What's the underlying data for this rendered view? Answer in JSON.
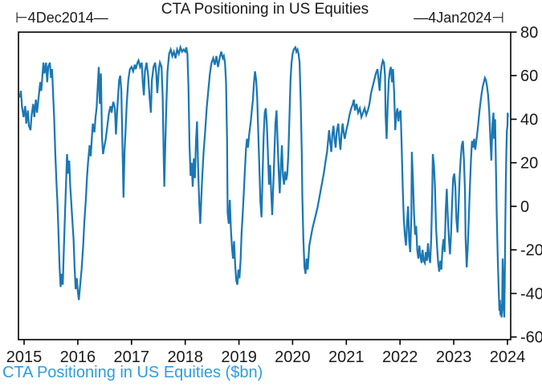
{
  "title": "CTA Positioning in US Equities",
  "range_labels": {
    "start": "⊢4Dec2014—",
    "end": "—4Jan2024⊣"
  },
  "footer": "CTA Positioning in US Equities ($bn)",
  "colors": {
    "line": "#1b77b4",
    "footer_text": "#2d9de0",
    "axis": "#000000",
    "text": "#1a1a1a"
  },
  "chart_data": {
    "type": "line",
    "title": "CTA Positioning in US Equities",
    "series_name": "CTA Positioning in US Equities ($bn)",
    "start_label": "4Dec2014",
    "end_label": "4Jan2024",
    "x_unit": "decimal_year",
    "y_axis_side": "right",
    "grid": false,
    "xlim": [
      2014.895,
      2024.06
    ],
    "ylim": [
      -61.2,
      80
    ],
    "x_ticks": [
      2015,
      2016,
      2017,
      2018,
      2019,
      2020,
      2021,
      2022,
      2023,
      2024
    ],
    "y_ticks": [
      80,
      60,
      40,
      20,
      0,
      -20,
      -40,
      -60
    ],
    "points": [
      [
        2014.92,
        50
      ],
      [
        2014.94,
        53
      ],
      [
        2014.96,
        46
      ],
      [
        2014.99,
        41
      ],
      [
        2015.02,
        46
      ],
      [
        2015.04,
        38
      ],
      [
        2015.07,
        44
      ],
      [
        2015.09,
        37
      ],
      [
        2015.12,
        35
      ],
      [
        2015.14,
        42
      ],
      [
        2015.17,
        47
      ],
      [
        2015.19,
        41
      ],
      [
        2015.22,
        49
      ],
      [
        2015.24,
        43
      ],
      [
        2015.27,
        50
      ],
      [
        2015.3,
        57
      ],
      [
        2015.32,
        53
      ],
      [
        2015.34,
        60
      ],
      [
        2015.36,
        66
      ],
      [
        2015.38,
        61
      ],
      [
        2015.41,
        66
      ],
      [
        2015.43,
        57
      ],
      [
        2015.45,
        64
      ],
      [
        2015.48,
        66
      ],
      [
        2015.5,
        59
      ],
      [
        2015.52,
        63
      ],
      [
        2015.54,
        52
      ],
      [
        2015.56,
        40
      ],
      [
        2015.58,
        25
      ],
      [
        2015.6,
        12
      ],
      [
        2015.62,
        2
      ],
      [
        2015.64,
        -12
      ],
      [
        2015.66,
        -28
      ],
      [
        2015.68,
        -37
      ],
      [
        2015.7,
        -31
      ],
      [
        2015.72,
        -36
      ],
      [
        2015.74,
        -20
      ],
      [
        2015.76,
        -4
      ],
      [
        2015.78,
        10
      ],
      [
        2015.8,
        24
      ],
      [
        2015.82,
        15
      ],
      [
        2015.84,
        21
      ],
      [
        2015.86,
        9
      ],
      [
        2015.88,
        1
      ],
      [
        2015.9,
        -7
      ],
      [
        2015.92,
        -15
      ],
      [
        2015.94,
        -28
      ],
      [
        2015.96,
        -38
      ],
      [
        2015.98,
        -33
      ],
      [
        2016.0,
        -39
      ],
      [
        2016.02,
        -43
      ],
      [
        2016.04,
        -37
      ],
      [
        2016.07,
        -29
      ],
      [
        2016.1,
        -18
      ],
      [
        2016.12,
        -8
      ],
      [
        2016.15,
        3
      ],
      [
        2016.17,
        13
      ],
      [
        2016.19,
        20
      ],
      [
        2016.22,
        28
      ],
      [
        2016.24,
        23
      ],
      [
        2016.26,
        31
      ],
      [
        2016.28,
        38
      ],
      [
        2016.31,
        34
      ],
      [
        2016.33,
        41
      ],
      [
        2016.35,
        45
      ],
      [
        2016.37,
        55
      ],
      [
        2016.39,
        64
      ],
      [
        2016.41,
        47
      ],
      [
        2016.43,
        61
      ],
      [
        2016.45,
        32
      ],
      [
        2016.47,
        24
      ],
      [
        2016.49,
        27
      ],
      [
        2016.52,
        31
      ],
      [
        2016.55,
        37
      ],
      [
        2016.58,
        43
      ],
      [
        2016.61,
        46
      ],
      [
        2016.63,
        43
      ],
      [
        2016.66,
        48
      ],
      [
        2016.69,
        45
      ],
      [
        2016.71,
        33
      ],
      [
        2016.74,
        47
      ],
      [
        2016.77,
        58
      ],
      [
        2016.79,
        60
      ],
      [
        2016.81,
        53
      ],
      [
        2016.83,
        30
      ],
      [
        2016.85,
        4
      ],
      [
        2016.87,
        25
      ],
      [
        2016.89,
        35
      ],
      [
        2016.91,
        47
      ],
      [
        2016.94,
        58
      ],
      [
        2016.97,
        63
      ],
      [
        2017.0,
        64
      ],
      [
        2017.03,
        62
      ],
      [
        2017.06,
        65
      ],
      [
        2017.08,
        63
      ],
      [
        2017.11,
        66
      ],
      [
        2017.13,
        67
      ],
      [
        2017.16,
        64
      ],
      [
        2017.19,
        66
      ],
      [
        2017.21,
        57
      ],
      [
        2017.23,
        51
      ],
      [
        2017.25,
        62
      ],
      [
        2017.28,
        66
      ],
      [
        2017.31,
        60
      ],
      [
        2017.34,
        49
      ],
      [
        2017.36,
        43
      ],
      [
        2017.38,
        58
      ],
      [
        2017.41,
        64
      ],
      [
        2017.44,
        66
      ],
      [
        2017.46,
        61
      ],
      [
        2017.48,
        52
      ],
      [
        2017.51,
        63
      ],
      [
        2017.53,
        66
      ],
      [
        2017.56,
        64
      ],
      [
        2017.58,
        50
      ],
      [
        2017.6,
        22
      ],
      [
        2017.61,
        9
      ],
      [
        2017.63,
        29
      ],
      [
        2017.65,
        48
      ],
      [
        2017.67,
        62
      ],
      [
        2017.7,
        70
      ],
      [
        2017.73,
        72
      ],
      [
        2017.76,
        69
      ],
      [
        2017.79,
        71
      ],
      [
        2017.82,
        68
      ],
      [
        2017.85,
        72
      ],
      [
        2017.88,
        70
      ],
      [
        2017.91,
        73
      ],
      [
        2017.94,
        71
      ],
      [
        2017.97,
        72
      ],
      [
        2018.0,
        71
      ],
      [
        2018.02,
        73
      ],
      [
        2018.04,
        70
      ],
      [
        2018.06,
        55
      ],
      [
        2018.08,
        28
      ],
      [
        2018.1,
        14
      ],
      [
        2018.12,
        20
      ],
      [
        2018.14,
        9
      ],
      [
        2018.16,
        22
      ],
      [
        2018.18,
        13
      ],
      [
        2018.2,
        30
      ],
      [
        2018.22,
        39
      ],
      [
        2018.24,
        18
      ],
      [
        2018.26,
        2
      ],
      [
        2018.28,
        -8
      ],
      [
        2018.31,
        10
      ],
      [
        2018.34,
        24
      ],
      [
        2018.37,
        34
      ],
      [
        2018.4,
        45
      ],
      [
        2018.43,
        53
      ],
      [
        2018.46,
        61
      ],
      [
        2018.49,
        66
      ],
      [
        2018.52,
        68
      ],
      [
        2018.55,
        65
      ],
      [
        2018.58,
        69
      ],
      [
        2018.61,
        64
      ],
      [
        2018.64,
        68
      ],
      [
        2018.67,
        71
      ],
      [
        2018.7,
        68
      ],
      [
        2018.72,
        69
      ],
      [
        2018.74,
        66
      ],
      [
        2018.76,
        57
      ],
      [
        2018.78,
        30
      ],
      [
        2018.79,
        -3
      ],
      [
        2018.81,
        -8
      ],
      [
        2018.83,
        3
      ],
      [
        2018.85,
        -10
      ],
      [
        2018.87,
        -19
      ],
      [
        2018.89,
        -24
      ],
      [
        2018.91,
        -16
      ],
      [
        2018.93,
        -27
      ],
      [
        2018.95,
        -34
      ],
      [
        2018.97,
        -36
      ],
      [
        2018.99,
        -29
      ],
      [
        2019.01,
        -33
      ],
      [
        2019.03,
        -25
      ],
      [
        2019.05,
        -12
      ],
      [
        2019.07,
        -4
      ],
      [
        2019.09,
        6
      ],
      [
        2019.11,
        16
      ],
      [
        2019.13,
        26
      ],
      [
        2019.15,
        31
      ],
      [
        2019.17,
        27
      ],
      [
        2019.19,
        33
      ],
      [
        2019.22,
        39
      ],
      [
        2019.24,
        44
      ],
      [
        2019.26,
        49
      ],
      [
        2019.28,
        57
      ],
      [
        2019.3,
        62
      ],
      [
        2019.32,
        58
      ],
      [
        2019.34,
        50
      ],
      [
        2019.36,
        34
      ],
      [
        2019.38,
        18
      ],
      [
        2019.4,
        2
      ],
      [
        2019.42,
        -5
      ],
      [
        2019.44,
        14
      ],
      [
        2019.46,
        32
      ],
      [
        2019.48,
        43
      ],
      [
        2019.5,
        45
      ],
      [
        2019.52,
        38
      ],
      [
        2019.54,
        24
      ],
      [
        2019.56,
        10
      ],
      [
        2019.58,
        19
      ],
      [
        2019.6,
        7
      ],
      [
        2019.62,
        -4
      ],
      [
        2019.64,
        10
      ],
      [
        2019.66,
        24
      ],
      [
        2019.68,
        38
      ],
      [
        2019.7,
        44
      ],
      [
        2019.72,
        30
      ],
      [
        2019.74,
        16
      ],
      [
        2019.76,
        6
      ],
      [
        2019.78,
        18
      ],
      [
        2019.8,
        28
      ],
      [
        2019.82,
        14
      ],
      [
        2019.84,
        10
      ],
      [
        2019.86,
        16
      ],
      [
        2019.88,
        12
      ],
      [
        2019.9,
        15
      ],
      [
        2019.92,
        24
      ],
      [
        2019.94,
        40
      ],
      [
        2019.96,
        58
      ],
      [
        2019.98,
        66
      ],
      [
        2020.0,
        70
      ],
      [
        2020.02,
        72
      ],
      [
        2020.05,
        73
      ],
      [
        2020.07,
        71
      ],
      [
        2020.09,
        72
      ],
      [
        2020.11,
        70
      ],
      [
        2020.13,
        66
      ],
      [
        2020.15,
        48
      ],
      [
        2020.17,
        25
      ],
      [
        2020.18,
        5
      ],
      [
        2020.2,
        -15
      ],
      [
        2020.22,
        -28
      ],
      [
        2020.24,
        -31
      ],
      [
        2020.26,
        -24
      ],
      [
        2020.28,
        -29
      ],
      [
        2020.31,
        -18
      ],
      [
        2020.34,
        -14
      ],
      [
        2020.37,
        -10
      ],
      [
        2020.4,
        -7
      ],
      [
        2020.43,
        -4
      ],
      [
        2020.46,
        -1
      ],
      [
        2020.49,
        3
      ],
      [
        2020.52,
        7
      ],
      [
        2020.55,
        11
      ],
      [
        2020.58,
        15
      ],
      [
        2020.61,
        20
      ],
      [
        2020.64,
        25
      ],
      [
        2020.66,
        30
      ],
      [
        2020.68,
        35
      ],
      [
        2020.7,
        29
      ],
      [
        2020.72,
        25
      ],
      [
        2020.74,
        33
      ],
      [
        2020.76,
        37
      ],
      [
        2020.78,
        31
      ],
      [
        2020.8,
        27
      ],
      [
        2020.82,
        34
      ],
      [
        2020.85,
        38
      ],
      [
        2020.87,
        31
      ],
      [
        2020.89,
        26
      ],
      [
        2020.91,
        33
      ],
      [
        2020.93,
        38
      ],
      [
        2020.95,
        34
      ],
      [
        2020.97,
        31
      ],
      [
        2021.0,
        35
      ],
      [
        2021.03,
        38
      ],
      [
        2021.06,
        42
      ],
      [
        2021.09,
        45
      ],
      [
        2021.12,
        47
      ],
      [
        2021.14,
        49
      ],
      [
        2021.16,
        44
      ],
      [
        2021.19,
        47
      ],
      [
        2021.22,
        43
      ],
      [
        2021.25,
        45
      ],
      [
        2021.28,
        41
      ],
      [
        2021.31,
        43
      ],
      [
        2021.34,
        45
      ],
      [
        2021.37,
        42
      ],
      [
        2021.4,
        44
      ],
      [
        2021.43,
        47
      ],
      [
        2021.46,
        52
      ],
      [
        2021.49,
        55
      ],
      [
        2021.52,
        58
      ],
      [
        2021.55,
        61
      ],
      [
        2021.58,
        63
      ],
      [
        2021.6,
        58
      ],
      [
        2021.62,
        53
      ],
      [
        2021.64,
        61
      ],
      [
        2021.66,
        65
      ],
      [
        2021.68,
        67
      ],
      [
        2021.7,
        66
      ],
      [
        2021.72,
        60
      ],
      [
        2021.73,
        42
      ],
      [
        2021.75,
        31
      ],
      [
        2021.77,
        46
      ],
      [
        2021.79,
        58
      ],
      [
        2021.81,
        62
      ],
      [
        2021.83,
        64
      ],
      [
        2021.85,
        57
      ],
      [
        2021.87,
        63
      ],
      [
        2021.89,
        52
      ],
      [
        2021.91,
        35
      ],
      [
        2021.93,
        42
      ],
      [
        2021.95,
        45
      ],
      [
        2021.97,
        39
      ],
      [
        2021.99,
        43
      ],
      [
        2022.01,
        44
      ],
      [
        2022.03,
        28
      ],
      [
        2022.05,
        8
      ],
      [
        2022.07,
        -6
      ],
      [
        2022.09,
        -13
      ],
      [
        2022.11,
        -18
      ],
      [
        2022.13,
        -8
      ],
      [
        2022.15,
        0
      ],
      [
        2022.17,
        -16
      ],
      [
        2022.19,
        -21
      ],
      [
        2022.21,
        -4
      ],
      [
        2022.22,
        25
      ],
      [
        2022.24,
        12
      ],
      [
        2022.26,
        -3
      ],
      [
        2022.28,
        -13
      ],
      [
        2022.3,
        -9
      ],
      [
        2022.32,
        -20
      ],
      [
        2022.34,
        -24
      ],
      [
        2022.36,
        -18
      ],
      [
        2022.38,
        -23
      ],
      [
        2022.4,
        -26
      ],
      [
        2022.42,
        -20
      ],
      [
        2022.44,
        -25
      ],
      [
        2022.46,
        -26
      ],
      [
        2022.48,
        -21
      ],
      [
        2022.5,
        -25
      ],
      [
        2022.52,
        -17
      ],
      [
        2022.54,
        -23
      ],
      [
        2022.56,
        -26
      ],
      [
        2022.58,
        -15
      ],
      [
        2022.6,
        6
      ],
      [
        2022.61,
        24
      ],
      [
        2022.63,
        19
      ],
      [
        2022.65,
        9
      ],
      [
        2022.67,
        -9
      ],
      [
        2022.69,
        -19
      ],
      [
        2022.71,
        -26
      ],
      [
        2022.73,
        -30
      ],
      [
        2022.75,
        -25
      ],
      [
        2022.77,
        -29
      ],
      [
        2022.79,
        -19
      ],
      [
        2022.81,
        -15
      ],
      [
        2022.83,
        -21
      ],
      [
        2022.85,
        -2
      ],
      [
        2022.87,
        8
      ],
      [
        2022.89,
        -5
      ],
      [
        2022.91,
        -15
      ],
      [
        2022.93,
        -22
      ],
      [
        2022.95,
        -12
      ],
      [
        2022.97,
        2
      ],
      [
        2022.99,
        13
      ],
      [
        2023.01,
        15
      ],
      [
        2023.03,
        9
      ],
      [
        2023.05,
        -6
      ],
      [
        2023.07,
        -12
      ],
      [
        2023.09,
        0
      ],
      [
        2023.11,
        14
      ],
      [
        2023.13,
        22
      ],
      [
        2023.15,
        28
      ],
      [
        2023.17,
        30
      ],
      [
        2023.19,
        21
      ],
      [
        2023.21,
        7
      ],
      [
        2023.22,
        -14
      ],
      [
        2023.24,
        -28
      ],
      [
        2023.26,
        -19
      ],
      [
        2023.28,
        -6
      ],
      [
        2023.3,
        9
      ],
      [
        2023.32,
        21
      ],
      [
        2023.34,
        30
      ],
      [
        2023.36,
        27
      ],
      [
        2023.38,
        31
      ],
      [
        2023.4,
        26
      ],
      [
        2023.42,
        30
      ],
      [
        2023.44,
        34
      ],
      [
        2023.46,
        39
      ],
      [
        2023.48,
        44
      ],
      [
        2023.5,
        48
      ],
      [
        2023.52,
        52
      ],
      [
        2023.54,
        55
      ],
      [
        2023.56,
        57
      ],
      [
        2023.58,
        59
      ],
      [
        2023.6,
        58
      ],
      [
        2023.62,
        55
      ],
      [
        2023.64,
        51
      ],
      [
        2023.66,
        44
      ],
      [
        2023.68,
        32
      ],
      [
        2023.7,
        21
      ],
      [
        2023.72,
        38
      ],
      [
        2023.74,
        43
      ],
      [
        2023.75,
        31
      ],
      [
        2023.77,
        40
      ],
      [
        2023.78,
        25
      ],
      [
        2023.8,
        -3
      ],
      [
        2023.82,
        -24
      ],
      [
        2023.84,
        -41
      ],
      [
        2023.85,
        -48
      ],
      [
        2023.86,
        -43
      ],
      [
        2023.87,
        -50
      ],
      [
        2023.88,
        -45
      ],
      [
        2023.89,
        -51
      ],
      [
        2023.9,
        -47
      ],
      [
        2023.91,
        -24
      ],
      [
        2023.92,
        -31
      ],
      [
        2023.93,
        -46
      ],
      [
        2023.94,
        -51
      ],
      [
        2023.95,
        -35
      ],
      [
        2023.96,
        -8
      ],
      [
        2023.97,
        12
      ],
      [
        2023.98,
        25
      ],
      [
        2023.99,
        35
      ],
      [
        2024.0,
        37
      ],
      [
        2024.005,
        43
      ],
      [
        2024.01,
        41
      ]
    ]
  }
}
